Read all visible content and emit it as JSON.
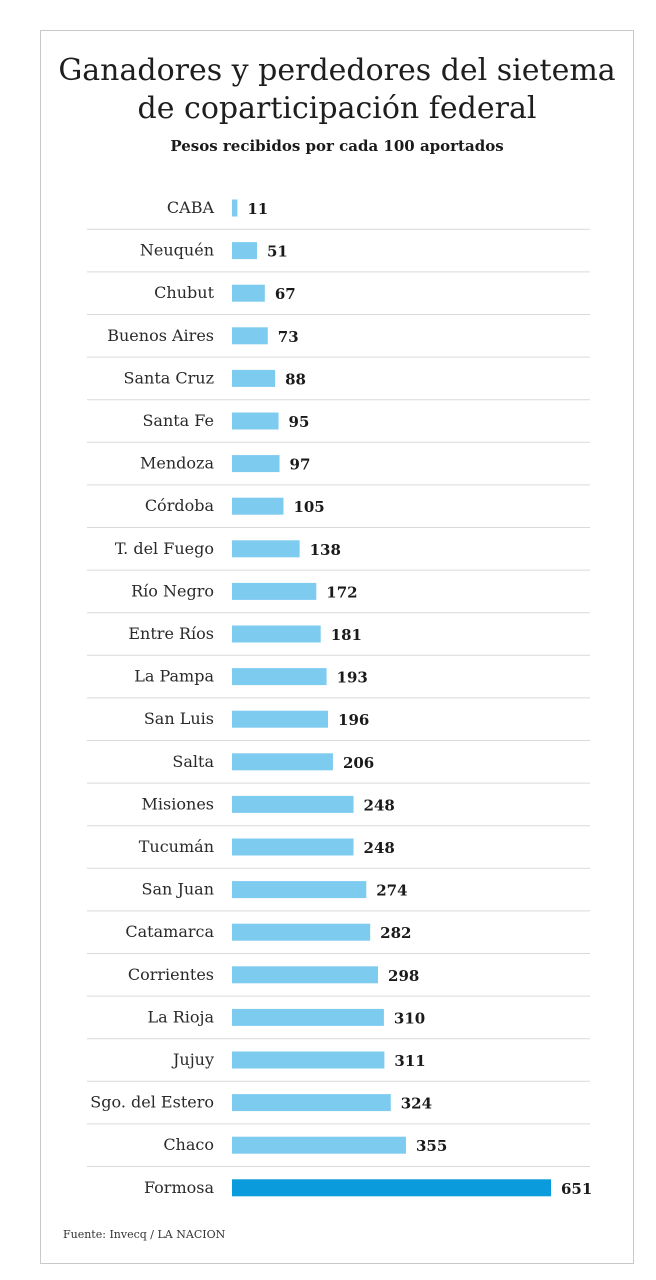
{
  "title_line1": "Ganadores y perdedores del sietema",
  "title_line2": "de coparticipación federal",
  "subtitle": "Pesos recibidos por cada 100 aportados",
  "source": "Fuente: Invecq / LA NACION",
  "colors": {
    "bar": "#7ecbf0",
    "highlight": "#0a9bdc",
    "divider": "#d9d9d9"
  },
  "chart_data": {
    "type": "bar",
    "orientation": "horizontal",
    "title": "Ganadores y perdedores del sietema de coparticipación federal",
    "subtitle": "Pesos recibidos por cada 100 aportados",
    "categories": [
      "CABA",
      "Neuquén",
      "Chubut",
      "Buenos Aires",
      "Santa Cruz",
      "Santa Fe",
      "Mendoza",
      "Córdoba",
      "T. del Fuego",
      "Río Negro",
      "Entre Ríos",
      "La Pampa",
      "San Luis",
      "Salta",
      "Misiones",
      "Tucumán",
      "San Juan",
      "Catamarca",
      "Corrientes",
      "La Rioja",
      "Jujuy",
      "Sgo. del Estero",
      "Chaco",
      "Formosa"
    ],
    "values": [
      11,
      51,
      67,
      73,
      88,
      95,
      97,
      105,
      138,
      172,
      181,
      193,
      196,
      206,
      248,
      248,
      274,
      282,
      298,
      310,
      311,
      324,
      355,
      651
    ],
    "highlighted": "Formosa",
    "xlim": [
      0,
      651
    ],
    "grid": false
  }
}
